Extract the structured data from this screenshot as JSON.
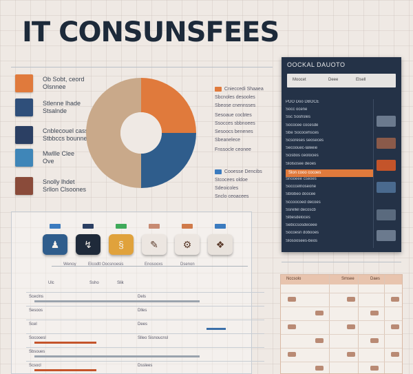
{
  "header": {
    "title": "IT CONSUNSFEES"
  },
  "legend": [
    {
      "label": "Ob Sobt, ceord",
      "color": "#e07a3c",
      "icon": "cloud-icon"
    },
    {
      "label": "Stlenne lhade",
      "color": "#2f4f7a",
      "icon": "server-icon"
    },
    {
      "label": "Cnblecouel cass",
      "color": "#2b3f63",
      "icon": "monitor-icon"
    },
    {
      "label": "Mwllle Clee",
      "color": "#3f86b8",
      "icon": "network-icon"
    },
    {
      "label": "Snolly lhdet",
      "color": "#8a4b3a",
      "icon": "shield-icon"
    }
  ],
  "legend_extra": [
    {
      "label": "Olsnnee",
      "under": 0
    },
    {
      "label": "Stsalnde",
      "under": 1
    },
    {
      "label": "Stbbccs bounnes",
      "under": 2
    },
    {
      "label": "Ove",
      "under": 3
    },
    {
      "label": "Srllon Clsoones",
      "under": 4
    }
  ],
  "chart_data": {
    "type": "pie",
    "donut": true,
    "slices": [
      {
        "value": 25,
        "color": "#e07a3c"
      },
      {
        "value": 25,
        "color": "#2f5d8c"
      },
      {
        "value": 50,
        "color": "#c9a98a"
      }
    ]
  },
  "notes": [
    {
      "text": "Cnieccedi Shaaea",
      "tag": ""
    },
    {
      "text": "Sbcnoles desooles",
      "tag": ""
    },
    {
      "text": "Sbeose cnennsses",
      "tag": ""
    },
    {
      "text": "Sesoaue cocbtes",
      "tag": ""
    },
    {
      "text": "Ssocces sbbnoees",
      "tag": ""
    },
    {
      "text": "Sesoocs benenes",
      "tag": ""
    },
    {
      "text": "Sbeanelece",
      "tag": ""
    },
    {
      "text": "Fnssocle ceonee",
      "tag": ""
    },
    {
      "text": "Cooesse Dencibs",
      "tag": ""
    },
    {
      "text": "Stcocees oldoe",
      "tag": ""
    },
    {
      "text": "Sdeoicoles",
      "tag": ""
    },
    {
      "text": "Snclo ceoacees",
      "tag": ""
    }
  ],
  "panel": {
    "title": "OOCKAL DAUOTO",
    "top_labels": [
      "Moocet",
      "Deee",
      "Elsell"
    ],
    "rows": [
      "PDO Doo DBOCE",
      "Socc ocene",
      "Ssc Soshsles",
      "Sococee cocesde",
      "Sbe Sococehsces",
      "Scsoreses seoseces",
      "Secoouec-laleeie",
      "Scisbos ceolocies",
      "Slolsosee deoes",
      "Slon cooo cocoes",
      "Snooeee cseoes",
      "Socccelnoseone",
      "Sblobeo doocee",
      "Sccoocoed decoes",
      "Ssrellel decoscb",
      "Slbesdeloces",
      "Sebccsosdeceee",
      "Socoesn dobooes",
      "Slosoosees-beos"
    ],
    "highlight_row": 9
  },
  "icon_strip": {
    "buttons": [
      {
        "color": "#2f5d8c",
        "chip": "#3b7bbf",
        "icon": "person-icon",
        "glyph": "♟"
      },
      {
        "color": "#1f2a3a",
        "chip": "#2b3f63",
        "icon": "chart-icon",
        "glyph": "↯"
      },
      {
        "color": "#e0a23c",
        "chip": "#3faa5a",
        "icon": "document-icon",
        "glyph": "§"
      },
      {
        "color": "#ece6e1",
        "chip": "#c78a72",
        "icon": "tools-icon",
        "glyph": "✎"
      },
      {
        "color": "#ece6e1",
        "chip": "#d07a4a",
        "icon": "settings-icon",
        "glyph": "⚙"
      },
      {
        "color": "#e8e2dc",
        "chip": "#3b7bbf",
        "icon": "folder-icon",
        "glyph": "❖"
      }
    ],
    "captions": [
      "Wenoy",
      "Elcodtt Oocsnoesis",
      "Enosooxs",
      "Dsenon"
    ]
  },
  "table": {
    "headers": [
      "Ulc",
      "Ssho",
      "Slik"
    ],
    "rows": [
      {
        "label": "Sceclns",
        "value": "Dels",
        "bar": "grey"
      },
      {
        "label": "Sesoos",
        "value": "Dlles",
        "bar": ""
      },
      {
        "label": "Scel",
        "value": "Dees",
        "bar": "blue"
      },
      {
        "label": "Socooesl",
        "value": "Slleo Sisnoucnsl",
        "bar": "red"
      },
      {
        "label": "Sbsoues",
        "value": "",
        "bar": "grey"
      },
      {
        "label": "Scsocl",
        "value": "Dsslees",
        "bar": "red"
      }
    ]
  },
  "right_table": {
    "headers": [
      "Nccsolo",
      "Smsee",
      "Daes"
    ],
    "rows": 6
  }
}
